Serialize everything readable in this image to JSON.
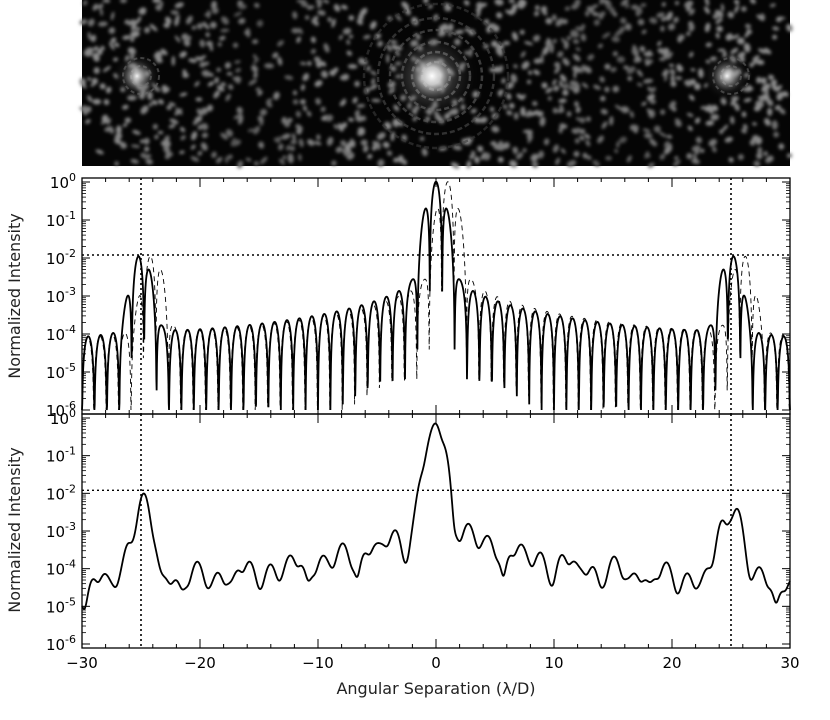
{
  "image_panel": {
    "description_icon": "psf-image",
    "sources_x": [
      -25,
      0,
      25
    ],
    "source_relative_brightness": [
      0.55,
      1.0,
      0.55
    ]
  },
  "chart_data": [
    {
      "type": "line",
      "panel": "top",
      "ylabel": "Normalized Intensity",
      "y_log": true,
      "ylim": [
        1e-06,
        1
      ],
      "xlim": [
        -30,
        30
      ],
      "y_ticks": [
        {
          "base": "10",
          "exp": "0",
          "value": 1
        },
        {
          "base": "10",
          "exp": "-1",
          "value": 0.1
        },
        {
          "base": "10",
          "exp": "-2",
          "value": 0.01
        },
        {
          "base": "10",
          "exp": "-3",
          "value": 0.001
        },
        {
          "base": "10",
          "exp": "-4",
          "value": 0.0001
        },
        {
          "base": "10",
          "exp": "-5",
          "value": 1e-05
        },
        {
          "base": "10",
          "exp": "-6",
          "value": 1e-06
        }
      ],
      "reference_lines": {
        "vertical_x": [
          -25,
          25
        ],
        "horizontal_y": 0.012
      },
      "series": [
        {
          "style": "solid",
          "peaks_x": [
            -25,
            0,
            25
          ],
          "peaks_y": [
            0.012,
            1,
            0.012
          ]
        },
        {
          "style": "dashed",
          "peaks_x": [
            -24,
            1,
            26
          ],
          "peaks_y": [
            0.012,
            1,
            0.012
          ]
        }
      ]
    },
    {
      "type": "line",
      "panel": "bottom",
      "ylabel": "Normalized Intensity",
      "xlabel": "Angular Separation (λ/D)",
      "y_log": true,
      "ylim": [
        1e-06,
        1
      ],
      "xlim": [
        -30,
        30
      ],
      "x_ticks": [
        "−30",
        "−20",
        "−10",
        "0",
        "10",
        "20",
        "30"
      ],
      "x_tick_values": [
        -30,
        -20,
        -10,
        0,
        10,
        20,
        30
      ],
      "y_ticks": [
        {
          "base": "10",
          "exp": "0",
          "value": 1
        },
        {
          "base": "10",
          "exp": "-1",
          "value": 0.1
        },
        {
          "base": "10",
          "exp": "-2",
          "value": 0.01
        },
        {
          "base": "10",
          "exp": "-3",
          "value": 0.001
        },
        {
          "base": "10",
          "exp": "-4",
          "value": 0.0001
        },
        {
          "base": "10",
          "exp": "-5",
          "value": 1e-05
        },
        {
          "base": "10",
          "exp": "-6",
          "value": 1e-06
        }
      ],
      "reference_lines": {
        "vertical_x": [
          -25,
          25
        ],
        "horizontal_y": 0.012
      },
      "series": [
        {
          "style": "solid",
          "peaks_x": [
            -25,
            0,
            25
          ],
          "peaks_y": [
            0.011,
            1,
            0.011
          ]
        }
      ]
    }
  ]
}
